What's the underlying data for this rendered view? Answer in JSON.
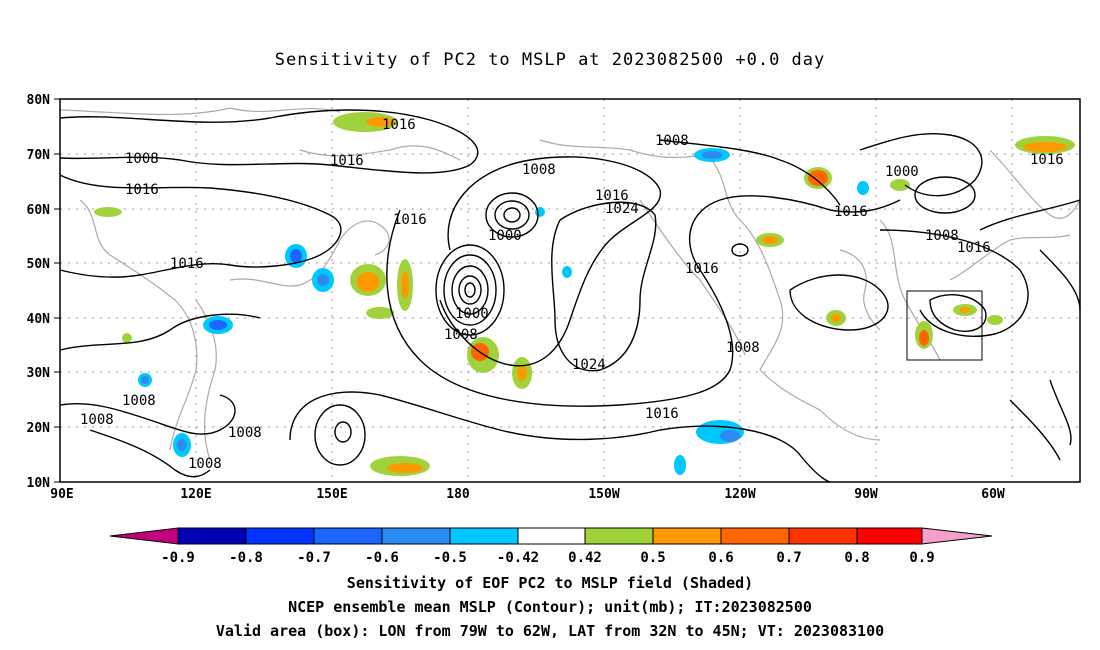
{
  "title": "Sensitivity of PC2 to MSLP at 2023082500 +0.0 day",
  "map": {
    "lat_labels": [
      "80N",
      "70N",
      "60N",
      "50N",
      "40N",
      "30N",
      "20N",
      "10N"
    ],
    "lon_labels": [
      "90E",
      "120E",
      "150E",
      "180",
      "150W",
      "120W",
      "90W",
      "60W"
    ],
    "contour_labels": [
      "1016",
      "1016",
      "1008",
      "1016",
      "1008",
      "1016",
      "1016",
      "1016",
      "1016",
      "1000",
      "1024",
      "1000",
      "1008",
      "1016",
      "1008",
      "1024",
      "1016",
      "1008",
      "1008",
      "1008",
      "1000",
      "1016",
      "1008",
      "1016"
    ],
    "box": {
      "lon_from": "79W",
      "lon_to": "62W",
      "lat_from": "32N",
      "lat_to": "45N"
    }
  },
  "colorbar": {
    "labels": [
      "-0.9",
      "-0.8",
      "-0.7",
      "-0.6",
      "-0.5",
      "-0.42",
      "0.42",
      "0.5",
      "0.6",
      "0.7",
      "0.8",
      "0.9"
    ],
    "colors": [
      "#0000b4",
      "#0033ff",
      "#1a66ff",
      "#2b8bf0",
      "#00c8ff",
      "#ffffff",
      "#a0d23c",
      "#ff9900",
      "#ff6600",
      "#ff3300",
      "#ff0000"
    ],
    "left_arrow_color": "#c0007a",
    "right_arrow_color": "#f5a0c8"
  },
  "captions": {
    "line1": "Sensitivity of EOF PC2 to MSLP field (Shaded)",
    "line2": "NCEP ensemble mean MSLP (Contour); unit(mb); IT:2023082500",
    "line3": "Valid area (box): LON from 79W to 62W, LAT from 32N to 45N; VT: 2023083100"
  }
}
